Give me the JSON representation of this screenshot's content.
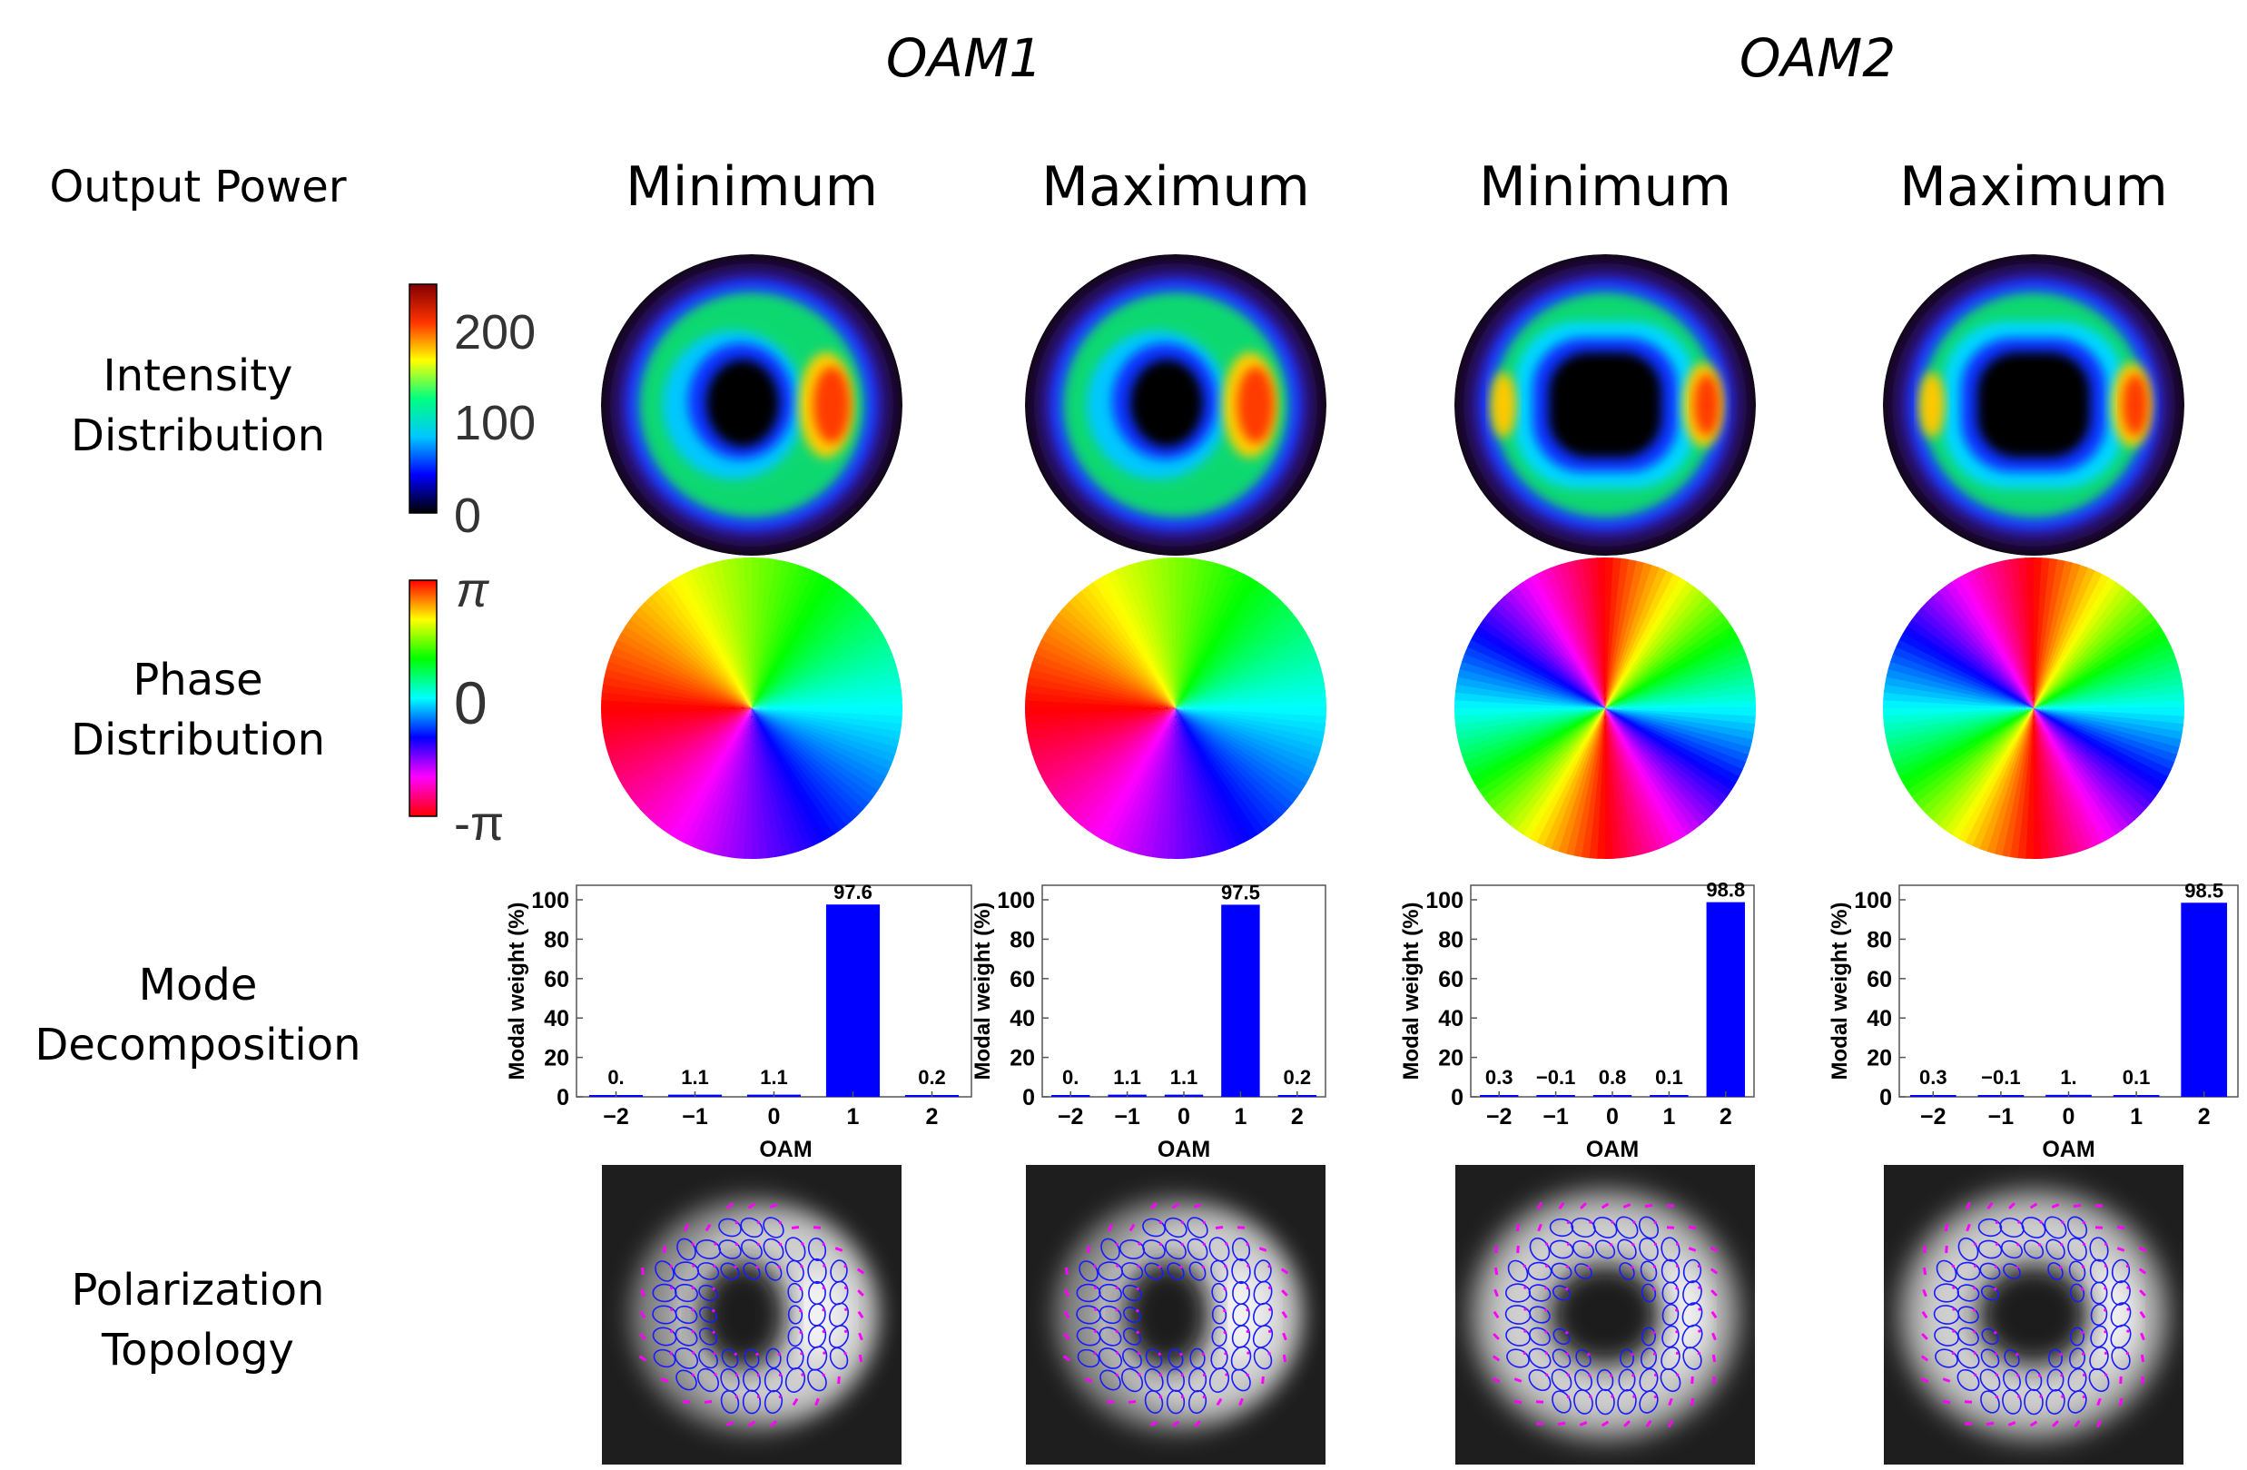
{
  "figure": {
    "group_titles": [
      "OAM1",
      "OAM2"
    ],
    "column_titles": [
      "Minimum",
      "Maximum",
      "Minimum",
      "Maximum"
    ],
    "row_labels": {
      "output_power": "Output Power",
      "intensity": [
        "Intensity",
        "Distribution"
      ],
      "phase": [
        "Phase",
        "Distribution"
      ],
      "mode": [
        "Mode",
        "Decomposition"
      ],
      "polarization": [
        "Polarization",
        "Topology"
      ]
    },
    "intensity_colorbar": {
      "ticks": [
        "200",
        "100",
        "0"
      ],
      "range": [
        0,
        250
      ]
    },
    "phase_colorbar": {
      "ticks": [
        "π",
        "0",
        "-π"
      ]
    },
    "intensity_map_colors": [
      "#000000",
      "#0000ff",
      "#00c8ff",
      "#00ff80",
      "#ffff00",
      "#ff3300",
      "#800000"
    ],
    "phase_map_colors": [
      "#ff0000",
      "#ff00ff",
      "#0000ff",
      "#00ffff",
      "#00ff00",
      "#ffff00",
      "#ff0000"
    ],
    "polarization_colors": {
      "ellipse": "#1a1aff",
      "marker": "#ff00ff",
      "background": "#1e1e1e"
    },
    "bar_color": "#0000ff"
  },
  "chart_data": [
    {
      "type": "bar",
      "title": "",
      "xlabel": "OAM",
      "ylabel": "Modal weight (%)",
      "ylim": [
        0,
        100
      ],
      "categories": [
        "−2",
        "−1",
        "0",
        "1",
        "2"
      ],
      "yticks": [
        "0",
        "20",
        "40",
        "60",
        "80",
        "100"
      ],
      "values": [
        0,
        1.1,
        1.1,
        97.6,
        0.2
      ],
      "labels": [
        "0.",
        "1.1",
        "1.1",
        "97.6",
        "0.2"
      ]
    },
    {
      "type": "bar",
      "title": "",
      "xlabel": "OAM",
      "ylabel": "Modal weight (%)",
      "ylim": [
        0,
        100
      ],
      "categories": [
        "−2",
        "−1",
        "0",
        "1",
        "2"
      ],
      "yticks": [
        "0",
        "20",
        "40",
        "60",
        "80",
        "100"
      ],
      "values": [
        0,
        1.1,
        1.1,
        97.5,
        0.2
      ],
      "labels": [
        "0.",
        "1.1",
        "1.1",
        "97.5",
        "0.2"
      ]
    },
    {
      "type": "bar",
      "title": "",
      "xlabel": "OAM",
      "ylabel": "Modal weight (%)",
      "ylim": [
        0,
        100
      ],
      "categories": [
        "−2",
        "−1",
        "0",
        "1",
        "2"
      ],
      "yticks": [
        "0",
        "20",
        "40",
        "60",
        "80",
        "100"
      ],
      "values": [
        0.3,
        -0.1,
        0.8,
        0.1,
        98.8
      ],
      "labels": [
        "0.3",
        "−0.1",
        "0.8",
        "0.1",
        "98.8"
      ]
    },
    {
      "type": "bar",
      "title": "",
      "xlabel": "OAM",
      "ylabel": "Modal weight (%)",
      "ylim": [
        0,
        100
      ],
      "categories": [
        "−2",
        "−1",
        "0",
        "1",
        "2"
      ],
      "yticks": [
        "0",
        "20",
        "40",
        "60",
        "80",
        "100"
      ],
      "values": [
        0.3,
        -0.1,
        1.0,
        0.1,
        98.5
      ],
      "labels": [
        "0.3",
        "−0.1",
        "1.",
        "0.1",
        "98.5"
      ]
    }
  ]
}
